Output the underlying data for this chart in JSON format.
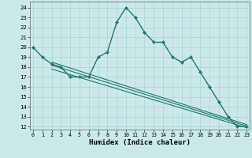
{
  "series_main": {
    "x": [
      0,
      1,
      2,
      3,
      4,
      5,
      6,
      7,
      8,
      9,
      10,
      11,
      12,
      13,
      14,
      15,
      16,
      17,
      18,
      19,
      20,
      21,
      22,
      23
    ],
    "y": [
      20,
      19,
      18.3,
      18,
      17,
      17,
      17,
      19,
      19.5,
      22.5,
      24,
      23,
      21.5,
      20.5,
      20.5,
      19,
      18.5,
      19,
      17.5,
      16,
      14.5,
      13,
      12,
      12
    ],
    "color": "#1e7a6e",
    "linewidth": 1.0,
    "markersize": 2.2
  },
  "lines_extra": [
    {
      "x": [
        2,
        23
      ],
      "y": [
        18.5,
        12.2
      ]
    },
    {
      "x": [
        2,
        23
      ],
      "y": [
        18.2,
        12.05
      ]
    },
    {
      "x": [
        2,
        23
      ],
      "y": [
        17.8,
        11.88
      ]
    }
  ],
  "xlim": [
    -0.3,
    23.3
  ],
  "ylim": [
    11.7,
    24.6
  ],
  "yticks": [
    12,
    13,
    14,
    15,
    16,
    17,
    18,
    19,
    20,
    21,
    22,
    23,
    24
  ],
  "xticks": [
    0,
    1,
    2,
    3,
    4,
    5,
    6,
    7,
    8,
    9,
    10,
    11,
    12,
    13,
    14,
    15,
    16,
    17,
    18,
    19,
    20,
    21,
    22,
    23
  ],
  "xlabel": "Humidex (Indice chaleur)",
  "background_color": "#cce9e9",
  "grid_color": "#aad4d4",
  "line_color": "#1e7a6e",
  "tick_fontsize": 5.0,
  "xlabel_fontsize": 6.5
}
